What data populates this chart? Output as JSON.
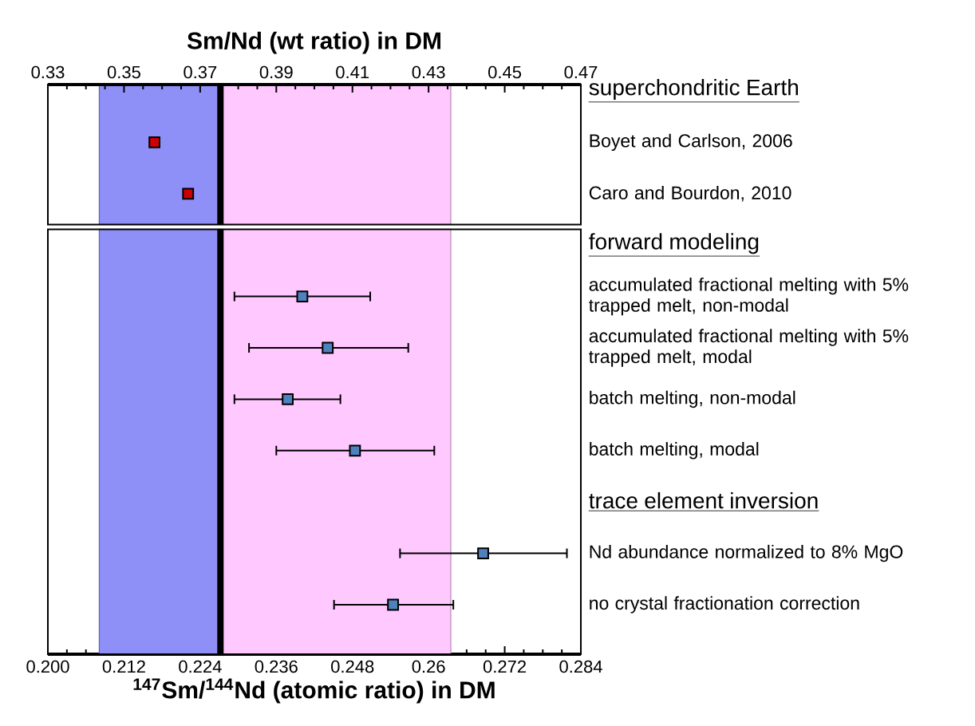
{
  "chart_data": [
    {
      "type": "scatter",
      "orientation": "horizontal",
      "categories": [
        "superchondritic Earth",
        "Boyet and Carlson, 2006",
        "Caro and Bourdon, 2010"
      ],
      "series": [
        {
          "color": "#cc0000",
          "values": [
            null,
            0.2168,
            0.2221
          ]
        }
      ],
      "x2label": "Sm/Nd (wt ratio) in DM",
      "xlim": [
        0.2,
        0.284
      ],
      "x2lim": [
        0.33,
        0.47
      ],
      "x2ticks": [
        0.33,
        0.35,
        0.37,
        0.39,
        0.41,
        0.43,
        0.45,
        0.47
      ],
      "bands": [
        {
          "axis": "x",
          "from": 0.2081,
          "to": 0.2272,
          "color": "#8f8ff8"
        },
        {
          "axis": "x",
          "from": 0.2272,
          "to": 0.2635,
          "color": "#ffc8ff"
        }
      ],
      "ref_lines": [
        {
          "axis": "x",
          "value": 0.2272,
          "color": "#000000"
        }
      ],
      "marker": "square"
    },
    {
      "type": "scatter",
      "orientation": "horizontal",
      "categories": [
        "forward modeling",
        "accumulated fractional melting with 5% trapped melt, non-modal",
        "accumulated fractional melting with 5% trapped melt, modal",
        "batch melting, non-modal",
        "batch melting, modal",
        "trace element inversion",
        "Nd abundance normalized to 8% MgO",
        "no crystal fractionation correction"
      ],
      "series": [
        {
          "color": "#4f81bd",
          "values": [
            null,
            0.2401,
            0.2441,
            0.2378,
            0.2484,
            null,
            0.2686,
            0.2544
          ],
          "errors": [
            null,
            [
              0.2294,
              0.2508
            ],
            [
              0.2317,
              0.2568
            ],
            [
              0.2294,
              0.2461
            ],
            [
              0.236,
              0.2609
            ],
            null,
            [
              0.2555,
              0.2818
            ],
            [
              0.2451,
              0.2639
            ]
          ]
        }
      ],
      "xlabel": "$^{147}$Sm/$^{144}$Nd (atomic ratio) in DM",
      "xlim": [
        0.2,
        0.284
      ],
      "xticks": [
        {
          "value": 0.2,
          "label": "0.200"
        },
        0.212,
        0.224,
        0.236,
        0.248,
        0.26,
        0.272,
        0.284
      ],
      "bands": [
        {
          "axis": "x",
          "from": 0.2081,
          "to": 0.2272,
          "color": "#8f8ff8"
        },
        {
          "axis": "x",
          "from": 0.2272,
          "to": 0.2635,
          "color": "#ffc8ff"
        }
      ],
      "ref_lines": [
        {
          "axis": "x",
          "value": 0.2272,
          "color": "#000000"
        }
      ],
      "marker": "square"
    }
  ]
}
